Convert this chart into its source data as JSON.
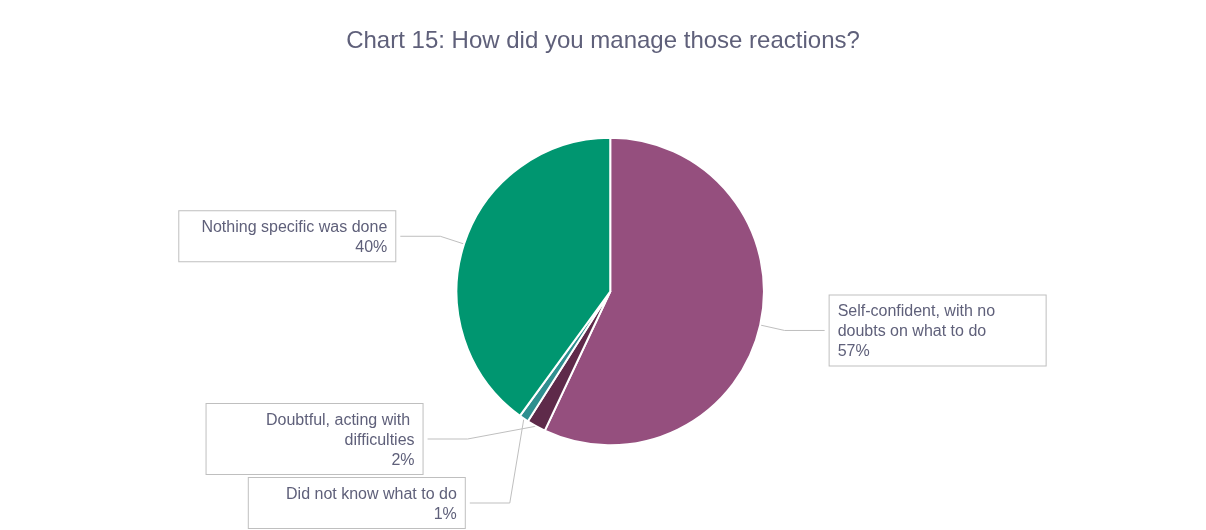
{
  "chart_data": {
    "type": "pie",
    "title": "Chart 15: How did you manage those reactions?",
    "categories": [
      "Self-confident, with no doubts on what to do",
      "Doubtful, acting with difficulties",
      "Did not know what to do",
      "Nothing specific was done"
    ],
    "values": [
      57,
      2,
      1,
      40
    ],
    "colors": [
      "#954f7e",
      "#5e2a4a",
      "#2f8f8f",
      "#009670"
    ],
    "value_labels": [
      "57%",
      "2%",
      "1%",
      "40%"
    ],
    "legend": false
  }
}
